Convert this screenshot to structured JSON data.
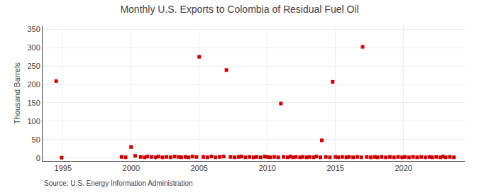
{
  "chart_data": {
    "type": "scatter",
    "title": "Monthly U.S. Exports to Colombia of Residual Fuel Oil",
    "ylabel": "Thousand Barrels",
    "annotations": [
      "Source: U.S. Energy Information Administration"
    ],
    "color": "#cc0000",
    "marker": "square",
    "grid": true,
    "xlim": [
      1993.5,
      2024.5
    ],
    "ylim": [
      -8,
      360
    ],
    "xticks": [
      1995,
      2000,
      2005,
      2010,
      2015,
      2020
    ],
    "yticks": [
      0,
      50,
      100,
      150,
      200,
      250,
      300,
      350
    ],
    "x": [
      1994.5,
      1994.9,
      1999.3,
      1999.6,
      2000.0,
      2000.3,
      2000.7,
      2001.0,
      2001.2,
      2001.5,
      2001.8,
      2002.0,
      2002.3,
      2002.6,
      2002.9,
      2003.2,
      2003.5,
      2003.7,
      2004.0,
      2004.2,
      2004.5,
      2004.8,
      2005.0,
      2005.3,
      2005.6,
      2005.9,
      2006.2,
      2006.5,
      2006.8,
      2007.0,
      2007.3,
      2007.6,
      2007.9,
      2008.1,
      2008.4,
      2008.7,
      2009.0,
      2009.2,
      2009.5,
      2009.8,
      2010.0,
      2010.2,
      2010.5,
      2010.8,
      2011.0,
      2011.2,
      2011.5,
      2011.7,
      2011.9,
      2012.1,
      2012.4,
      2012.6,
      2012.9,
      2013.1,
      2013.4,
      2013.6,
      2013.9,
      2014.0,
      2014.3,
      2014.6,
      2014.8,
      2015.0,
      2015.2,
      2015.5,
      2015.8,
      2016.0,
      2016.3,
      2016.6,
      2016.9,
      2017.0,
      2017.3,
      2017.6,
      2017.9,
      2018.1,
      2018.4,
      2018.7,
      2019.0,
      2019.3,
      2019.6,
      2019.9,
      2020.1,
      2020.4,
      2020.7,
      2021.0,
      2021.3,
      2021.6,
      2021.9,
      2022.1,
      2022.4,
      2022.7,
      2022.9,
      2023.1,
      2023.4,
      2023.7
    ],
    "values": [
      209,
      1,
      3,
      2,
      30,
      6,
      3,
      2,
      4,
      3,
      2,
      4,
      2,
      3,
      2,
      4,
      3,
      2,
      3,
      2,
      4,
      3,
      275,
      3,
      2,
      4,
      2,
      3,
      4,
      239,
      3,
      2,
      3,
      4,
      2,
      3,
      2,
      3,
      2,
      4,
      3,
      2,
      3,
      2,
      148,
      3,
      2,
      4,
      2,
      3,
      2,
      3,
      2,
      3,
      2,
      4,
      2,
      48,
      3,
      2,
      207,
      3,
      2,
      3,
      2,
      3,
      2,
      3,
      2,
      302,
      3,
      2,
      3,
      2,
      3,
      2,
      3,
      2,
      3,
      2,
      3,
      2,
      3,
      2,
      3,
      2,
      3,
      2,
      3,
      2,
      4,
      2,
      3,
      2
    ]
  }
}
